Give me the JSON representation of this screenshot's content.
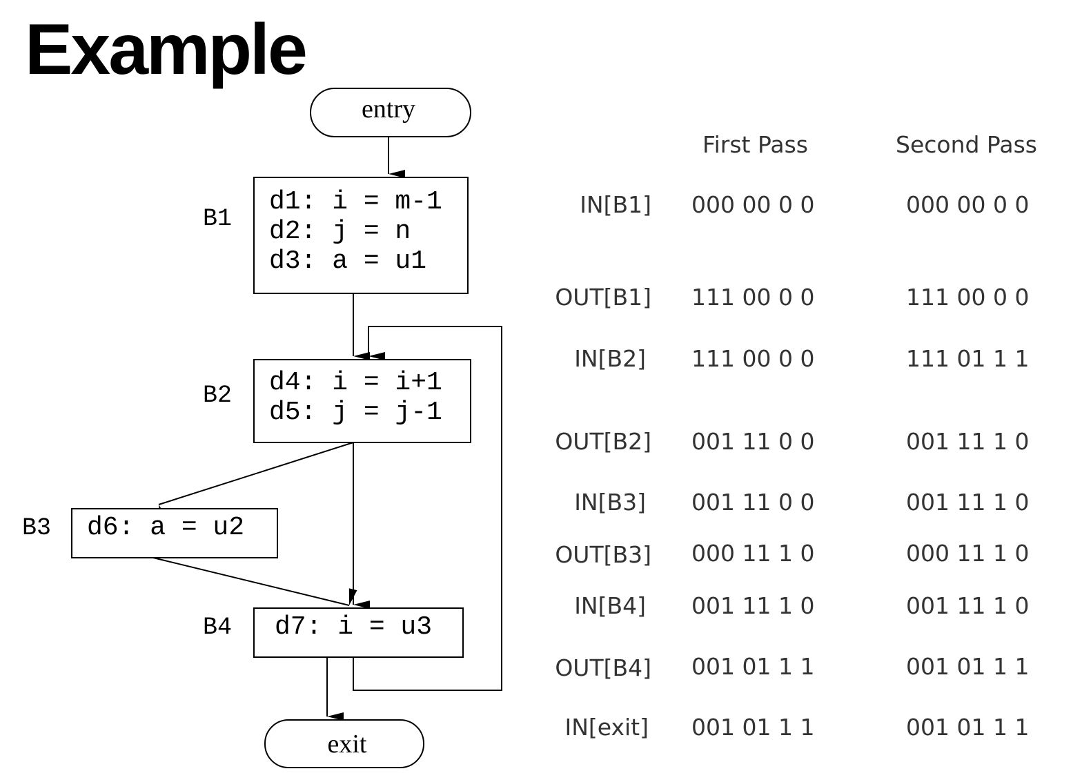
{
  "title": "Example",
  "flowgraph": {
    "entry": "entry",
    "exit": "exit",
    "blocks": [
      {
        "label": "B1",
        "lines": [
          "d1: i = m-1",
          "d2: j = n",
          "d3: a = u1"
        ]
      },
      {
        "label": "B2",
        "lines": [
          "d4: i = i+1",
          "d5: j = j-1"
        ]
      },
      {
        "label": "B3",
        "lines": [
          "d6: a = u2"
        ]
      },
      {
        "label": "B4",
        "lines": [
          "d7: i = u3"
        ]
      }
    ]
  },
  "table": {
    "headers": [
      "First Pass",
      "Second Pass"
    ],
    "rows": [
      {
        "label": "IN[B1]",
        "first": "000 00 0 0",
        "second": "000 00 0 0"
      },
      {
        "label": "OUT[B1]",
        "first": "111 00 0 0",
        "second": "111 00 0 0"
      },
      {
        "label": "IN[B2]",
        "first": "111 00 0 0",
        "second": "111 01 1 1"
      },
      {
        "label": "OUT[B2]",
        "first": "001 11 0 0",
        "second": "001 11 1 0"
      },
      {
        "label": "IN[B3]",
        "first": "001 11 0 0",
        "second": "001 11 1 0"
      },
      {
        "label": "OUT[B3]",
        "first": "000 11 1 0",
        "second": "000 11 1 0"
      },
      {
        "label": "IN[B4]",
        "first": "001 11 1 0",
        "second": "001 11 1 0"
      },
      {
        "label": "OUT[B4]",
        "first": "001 01 1 1",
        "second": "001 01 1 1"
      },
      {
        "label": "IN[exit]",
        "first": "001 01 1 1",
        "second": "001 01 1 1"
      }
    ]
  }
}
